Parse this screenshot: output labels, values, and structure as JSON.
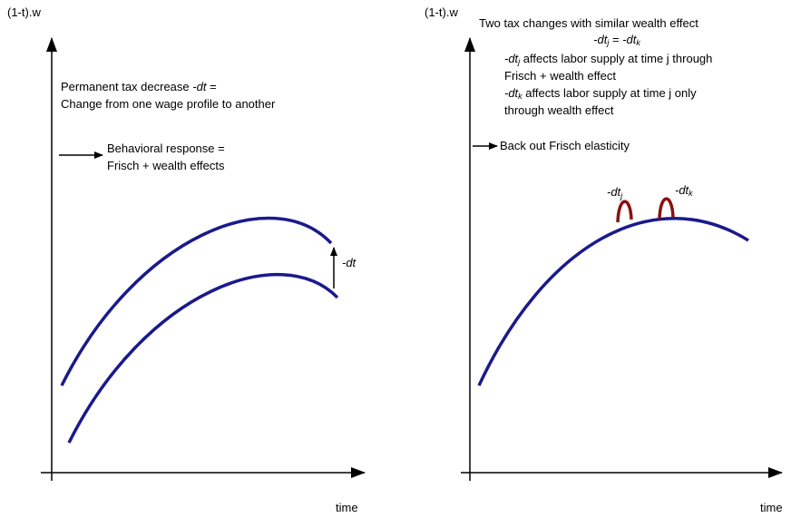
{
  "left": {
    "y_label": "(1-t).w",
    "x_label": "time",
    "note": {
      "line_1": {
        "text": "Permanent tax decrease",
        "em": "-dt",
        "tail": "="
      },
      "line_2": "Change from one wage profile to another"
    },
    "response": {
      "line_1": "Behavioral response =",
      "line_2": "Frisch + wealth effects"
    },
    "shift_label": "-dt"
  },
  "right": {
    "y_label": "(1-t).w",
    "x_label": "time",
    "title": "Two tax changes with similar wealth effect",
    "equation": {
      "lhs": "-dt",
      "lhs_sub": "j",
      "eq": "=",
      "rhs": "-dt",
      "rhs_sub": "k"
    },
    "note_j": {
      "term": "-dt",
      "sub": "j",
      "line_1": "affects labor supply at time j through",
      "line_2": "Frisch + wealth effect"
    },
    "note_k": {
      "term": "-dt",
      "sub": "k",
      "line_1": "affects labor supply at time j only",
      "line_2": "through wealth effect"
    },
    "conclusion": "Back out Frisch elasticity",
    "bump_j": {
      "term": "-dt",
      "sub": "j"
    },
    "bump_k": {
      "term": "-dt",
      "sub": "k"
    }
  }
}
